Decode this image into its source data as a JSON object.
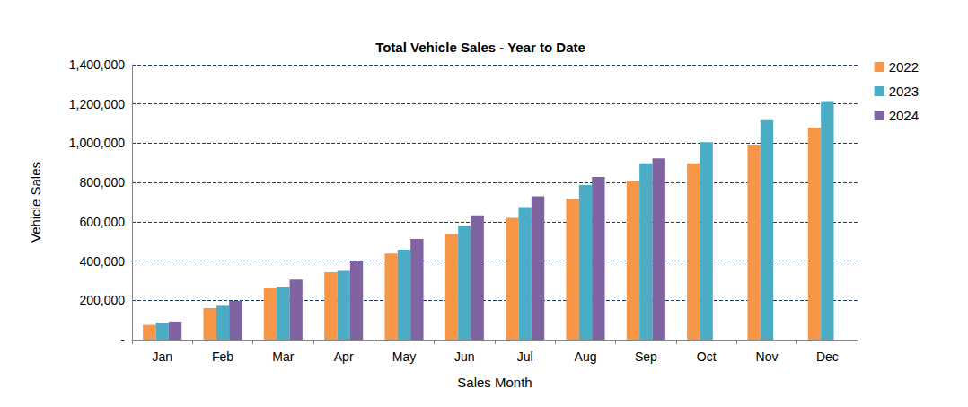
{
  "chart_data": {
    "type": "bar",
    "title": "Total Vehicle Sales - Year to Date",
    "x_label": "Sales Month",
    "y_label": "Vehicle Sales",
    "categories": [
      "Jan",
      "Feb",
      "Mar",
      "Apr",
      "May",
      "Jun",
      "Jul",
      "Aug",
      "Sep",
      "Oct",
      "Nov",
      "Dec"
    ],
    "series": [
      {
        "name": "2022",
        "color": "#f79646",
        "values": [
          75000,
          160000,
          265000,
          343000,
          438000,
          538000,
          620000,
          718000,
          810000,
          898000,
          993000,
          1080000
        ]
      },
      {
        "name": "2023",
        "color": "#4bacc6",
        "values": [
          87000,
          172000,
          270000,
          350000,
          457000,
          580000,
          675000,
          787000,
          898000,
          1005000,
          1117000,
          1215000
        ]
      },
      {
        "name": "2024",
        "color": "#8064a2",
        "values": [
          92000,
          197000,
          305000,
          400000,
          512000,
          632000,
          730000,
          828000,
          923000,
          null,
          null,
          null
        ]
      }
    ],
    "ylim": [
      0,
      1400000
    ],
    "yticks": [
      {
        "value": 0,
        "label": "-"
      },
      {
        "value": 200000,
        "label": "200,000"
      },
      {
        "value": 400000,
        "label": "400,000"
      },
      {
        "value": 600000,
        "label": "600,000"
      },
      {
        "value": 800000,
        "label": "800,000"
      },
      {
        "value": 1000000,
        "label": "1,000,000"
      },
      {
        "value": 1200000,
        "label": "1,200,000"
      },
      {
        "value": 1400000,
        "label": "1,400,000"
      }
    ],
    "grid": true,
    "legend": "right"
  }
}
